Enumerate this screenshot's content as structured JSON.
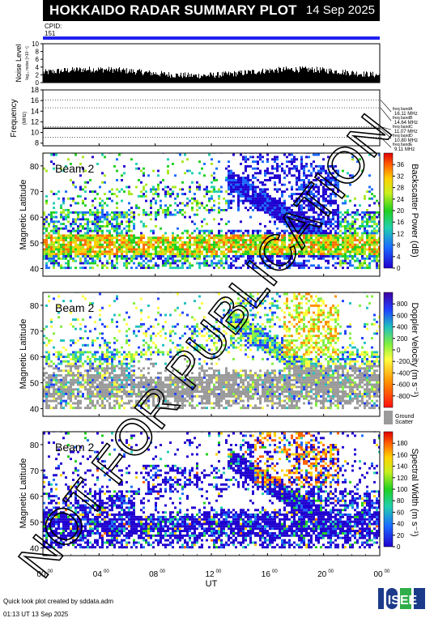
{
  "header": {
    "title": "HOKKAIDO RADAR SUMMARY PLOT",
    "date": "14 Sep 2025",
    "cpid_label": "CPID:",
    "cpid_value": "151"
  },
  "footer": {
    "credit": "Quick look plot created by sddata.adm",
    "timestamp": "01:13 UT 13 Sep 2025",
    "logo_text": "ISEE"
  },
  "watermark": "NOT FOR PUBLICATION",
  "colors": {
    "blue_bar": "#2020f0",
    "ground_scatter": "#9a9a9a",
    "grid_dotted": "#000000"
  },
  "chart_data": [
    {
      "id": "noise",
      "type": "bar",
      "ylabel": "Noise Level",
      "ylabel_sub": "log₁₀ noise [×10⁻⁴]",
      "ylim": [
        0,
        10
      ],
      "yticks": [
        "0",
        "2",
        "4",
        "6",
        "8",
        "10"
      ],
      "typical_level": 1.8
    },
    {
      "id": "frequency",
      "type": "line",
      "ylabel": "Frequency",
      "ylabel_unit": "(MHz)",
      "ylim": [
        7.5,
        18
      ],
      "yticks": [
        "8",
        "10",
        "12",
        "14",
        "16",
        "18"
      ],
      "frequency_bands": [
        {
          "label": "freq bandA",
          "value_label": "16.11 MHz",
          "value": 16.11
        },
        {
          "label": "freq bandB",
          "value_label": "14.64 MHz",
          "value": 14.64
        },
        {
          "label": "freq bandC",
          "value_label": "11.07 MHz",
          "value": 11.07
        },
        {
          "label": "freq bandD",
          "value_label": "10.80 MHz",
          "value": 10.8
        },
        {
          "label": "freq bandE",
          "value_label": "9.11 MHz",
          "value": 9.11
        }
      ],
      "operating_frequency": 10.8
    },
    {
      "id": "power",
      "type": "heatmap",
      "label": "Beam 2",
      "ylabel": "Magnetic Latitude",
      "ylim": [
        37,
        85
      ],
      "yticks": [
        "40",
        "50",
        "60",
        "70",
        "80"
      ],
      "colorbar_label": "Backscatter Power (dB)",
      "colorbar_ticks": [
        "0",
        "4",
        "8",
        "12",
        "16",
        "20",
        "24",
        "28",
        "32",
        "36"
      ],
      "colorbar_range": [
        0,
        40
      ]
    },
    {
      "id": "velocity",
      "type": "heatmap",
      "label": "Beam 2",
      "ylabel": "Magnetic Latitude",
      "ylim": [
        37,
        85
      ],
      "yticks": [
        "40",
        "50",
        "60",
        "70",
        "80"
      ],
      "colorbar_label": "Doppler Velocity (m s⁻¹)",
      "colorbar_ticks": [
        "-800",
        "-600",
        "-400",
        "-200",
        "0",
        "200",
        "400",
        "600",
        "800"
      ],
      "colorbar_range": [
        -1000,
        1000
      ],
      "ground_scatter_label": [
        "Ground",
        "Scatter"
      ]
    },
    {
      "id": "width",
      "type": "heatmap",
      "label": "Beam 2",
      "ylabel": "Magnetic Latitude",
      "ylim": [
        37,
        85
      ],
      "yticks": [
        "40",
        "50",
        "60",
        "70",
        "80"
      ],
      "colorbar_label": "Spectral Width (m s⁻¹)",
      "colorbar_ticks": [
        "0",
        "20",
        "40",
        "60",
        "80",
        "100",
        "120",
        "140",
        "160",
        "180"
      ],
      "colorbar_range": [
        0,
        200
      ]
    }
  ],
  "time_axis": {
    "xlabel": "UT",
    "range_hours": [
      0,
      24
    ],
    "ticks": [
      {
        "hour": "00",
        "min": "00"
      },
      {
        "hour": "04",
        "min": "00"
      },
      {
        "hour": "08",
        "min": "00"
      },
      {
        "hour": "12",
        "min": "00"
      },
      {
        "hour": "16",
        "min": "00"
      },
      {
        "hour": "20",
        "min": "00"
      },
      {
        "hour": "00",
        "min": "00"
      }
    ]
  }
}
